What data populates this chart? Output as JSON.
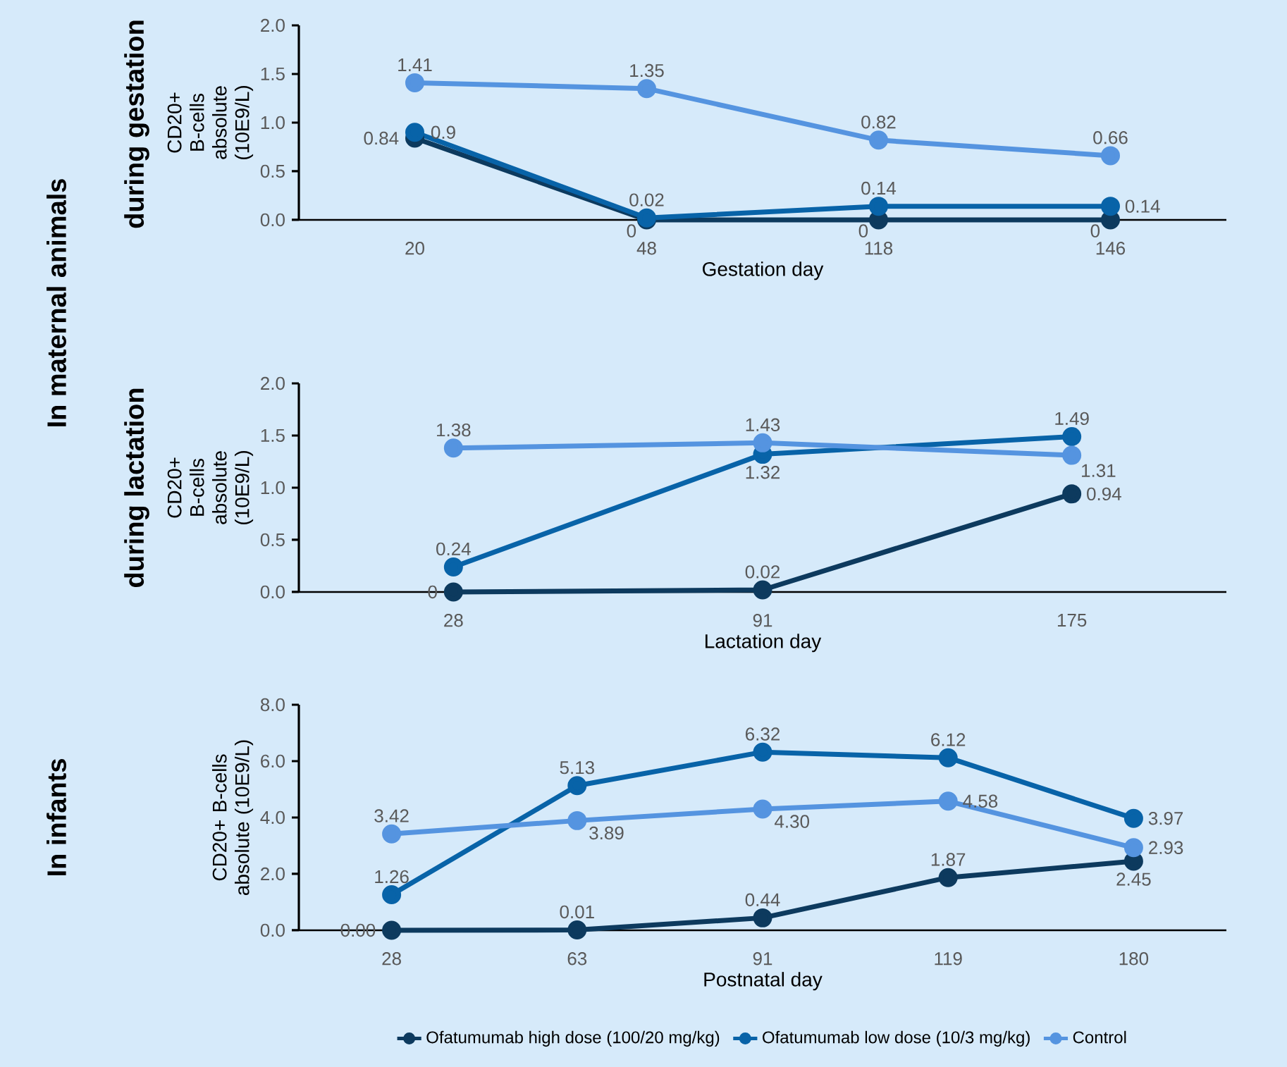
{
  "chart_data": [
    {
      "type": "line",
      "ylabel": "CD20+ B-cells absolute (10E9/L)",
      "xlabel": "Gestation day",
      "categories": [
        "20",
        "48",
        "118",
        "146"
      ],
      "ylim": [
        0,
        2
      ],
      "yticks": [
        {
          "value": 0,
          "label": "0.0"
        },
        {
          "value": 0.5,
          "label": "0.5"
        },
        {
          "value": 1,
          "label": "1.0"
        },
        {
          "value": 1.5,
          "label": "1.5"
        },
        {
          "value": 2,
          "label": "2.0"
        }
      ],
      "marker": "circle",
      "line_style": "solid",
      "grid": false,
      "annotations": [
        "In maternal animals",
        "during gestation"
      ],
      "series": [
        {
          "color": "#0d3a5e",
          "values": [
            0.84,
            0,
            0,
            0
          ],
          "value_labels": [
            "0.84",
            "0",
            "0",
            "0"
          ]
        },
        {
          "color": "#0863a8",
          "values": [
            0.9,
            0.02,
            0.14,
            0.14
          ],
          "value_labels": [
            "0.9",
            "0.02",
            "0.14",
            "0.14"
          ]
        },
        {
          "color": "#5594e0",
          "values": [
            1.41,
            1.35,
            0.82,
            0.66
          ],
          "value_labels": [
            "1.41",
            "1.35",
            "0.82",
            "0.66"
          ]
        }
      ]
    },
    {
      "type": "line",
      "ylabel": "CD20+ B-cells absolute (10E9/L)",
      "xlabel": "Lactation day",
      "categories": [
        "28",
        "91",
        "175"
      ],
      "ylim": [
        0,
        2
      ],
      "yticks": [
        {
          "value": 0,
          "label": "0.0"
        },
        {
          "value": 0.5,
          "label": "0.5"
        },
        {
          "value": 1,
          "label": "1.0"
        },
        {
          "value": 1.5,
          "label": "1.5"
        },
        {
          "value": 2,
          "label": "2.0"
        }
      ],
      "marker": "circle",
      "line_style": "solid",
      "grid": false,
      "annotations": [
        "during lactation"
      ],
      "series": [
        {
          "color": "#0d3a5e",
          "values": [
            0,
            0.02,
            0.94
          ],
          "value_labels": [
            "0",
            "0.02",
            "0.94"
          ]
        },
        {
          "color": "#0863a8",
          "values": [
            0.24,
            1.32,
            1.49
          ],
          "value_labels": [
            "0.24",
            "1.32",
            "1.49"
          ]
        },
        {
          "color": "#5594e0",
          "values": [
            1.38,
            1.43,
            1.31
          ],
          "value_labels": [
            "1.38",
            "1.43",
            "1.31"
          ]
        }
      ]
    },
    {
      "type": "line",
      "ylabel": "CD20+ B-cells absolute (10E9/L)",
      "xlabel": "Postnatal day",
      "categories": [
        "28",
        "63",
        "91",
        "119",
        "180"
      ],
      "ylim": [
        0,
        8
      ],
      "yticks": [
        {
          "value": 0,
          "label": "0.0"
        },
        {
          "value": 2,
          "label": "2.0"
        },
        {
          "value": 4,
          "label": "4.0"
        },
        {
          "value": 6,
          "label": "6.0"
        },
        {
          "value": 8,
          "label": "8.0"
        }
      ],
      "marker": "circle",
      "line_style": "solid",
      "grid": false,
      "legend": "bottom",
      "annotations": [
        "In infants"
      ],
      "series": [
        {
          "name": "Ofatumumab high dose (100/20 mg/kg)",
          "color": "#0d3a5e",
          "values": [
            0,
            0.01,
            0.44,
            1.87,
            2.45
          ],
          "value_labels": [
            "0.00",
            "0.01",
            "0.44",
            "1.87",
            "2.45"
          ]
        },
        {
          "name": "Ofatumumab low dose (10/3 mg/kg)",
          "color": "#0863a8",
          "values": [
            1.26,
            5.13,
            6.32,
            6.12,
            3.97
          ],
          "value_labels": [
            "1.26",
            "5.13",
            "6.32",
            "6.12",
            "3.97"
          ]
        },
        {
          "name": "Control",
          "color": "#5594e0",
          "values": [
            3.42,
            3.89,
            4.3,
            4.58,
            2.93
          ],
          "value_labels": [
            "3.42",
            "3.89",
            "4.30",
            "4.58",
            "2.93"
          ]
        }
      ]
    }
  ]
}
